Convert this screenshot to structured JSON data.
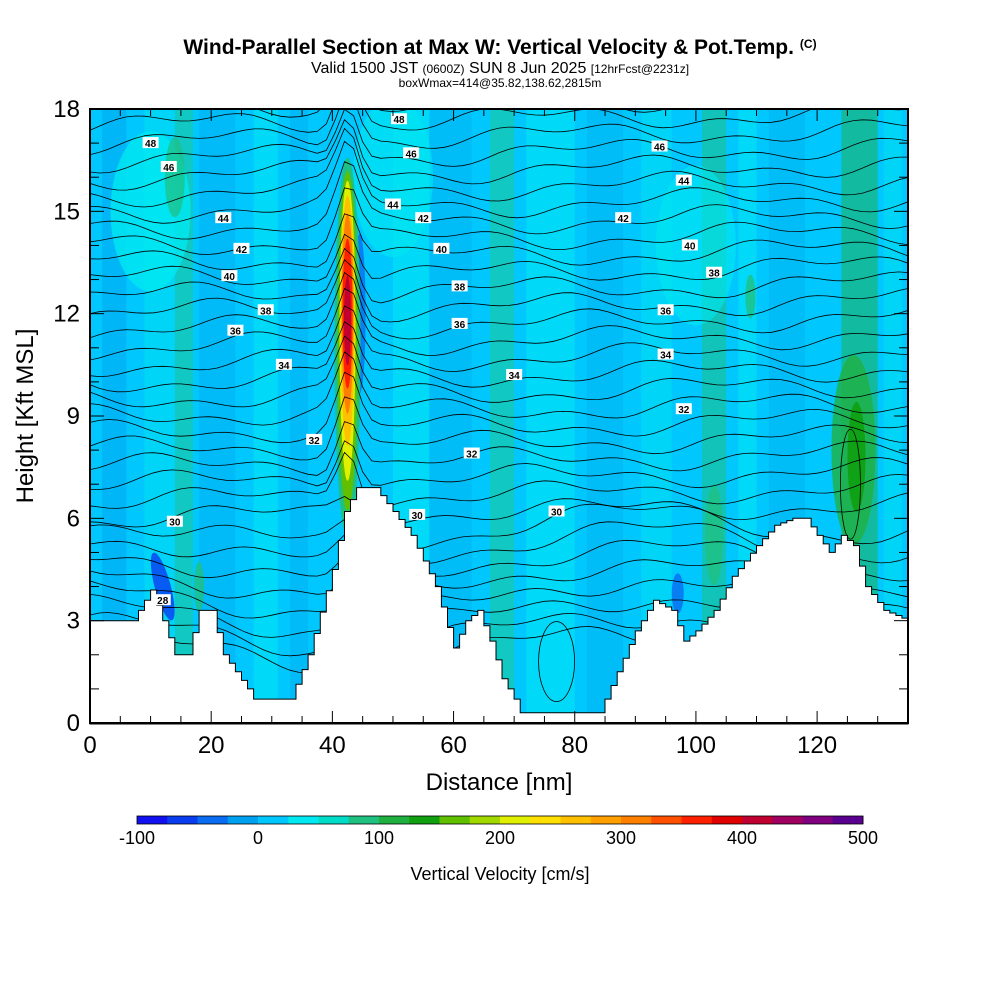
{
  "title": {
    "main": "Wind-Parallel Section at Max W: Vertical Velocity & Pot.Temp.",
    "copyright": "(C)",
    "valid_prefix": "Valid 1500 JST",
    "valid_z": "(0600Z)",
    "valid_date": "SUN 8 Jun 2025",
    "forecast": "[12hrFcst@2231z]",
    "boxwmax": "boxWmax=414@35.82,138.62,2815m"
  },
  "chart_data": {
    "type": "heatmap",
    "xlabel": "Distance [nm]",
    "ylabel": "Height [Kft MSL]",
    "xlim": [
      0,
      135
    ],
    "ylim": [
      0,
      18
    ],
    "x_ticks": [
      0,
      20,
      40,
      60,
      80,
      100,
      120
    ],
    "y_ticks": [
      0,
      3,
      6,
      9,
      12,
      15,
      18
    ],
    "colorbar": {
      "title": "Vertical Velocity [cm/s]",
      "range": [
        -100,
        500
      ],
      "ticks": [
        -100,
        0,
        100,
        200,
        300,
        400,
        500
      ],
      "colors": [
        "#1010f0",
        "#0a3cf0",
        "#0a6cf0",
        "#00a0f0",
        "#00c8ff",
        "#00e8f0",
        "#00dcc8",
        "#20c080",
        "#20b040",
        "#10a010",
        "#60c000",
        "#a0d800",
        "#e0f000",
        "#ffe000",
        "#ffc000",
        "#ffa000",
        "#ff8000",
        "#ff5000",
        "#ff2000",
        "#e00000",
        "#c00030",
        "#a00060",
        "#800080",
        "#5a0090"
      ]
    },
    "max_updraft": {
      "x": 42.5,
      "peak_height": 12,
      "max_value": 414
    },
    "background_value_color": "#00c8ff",
    "terrain": [
      [
        0,
        3
      ],
      [
        7,
        3
      ],
      [
        10,
        3.9
      ],
      [
        12,
        3
      ],
      [
        14,
        2
      ],
      [
        16,
        2
      ],
      [
        18,
        3.3
      ],
      [
        20,
        3.3
      ],
      [
        22,
        2
      ],
      [
        24,
        1.5
      ],
      [
        26,
        1
      ],
      [
        27,
        0.7
      ],
      [
        33,
        0.7
      ],
      [
        36,
        2
      ],
      [
        40,
        4.5
      ],
      [
        42,
        6.2
      ],
      [
        44,
        6.9
      ],
      [
        47,
        6.9
      ],
      [
        50,
        6.2
      ],
      [
        53,
        5.5
      ],
      [
        57,
        4
      ],
      [
        60,
        2.2
      ],
      [
        62,
        3
      ],
      [
        64,
        3.3
      ],
      [
        66,
        2.4
      ],
      [
        68,
        1.3
      ],
      [
        70,
        0.7
      ],
      [
        71,
        0.3
      ],
      [
        84,
        0.3
      ],
      [
        87,
        1.5
      ],
      [
        90,
        2.7
      ],
      [
        93,
        3.6
      ],
      [
        96,
        3.3
      ],
      [
        98,
        2.4
      ],
      [
        100,
        2.7
      ],
      [
        103,
        3.3
      ],
      [
        106,
        4.3
      ],
      [
        110,
        5.2
      ],
      [
        113,
        5.8
      ],
      [
        116,
        6
      ],
      [
        118,
        6
      ],
      [
        120,
        5.5
      ],
      [
        122,
        5
      ],
      [
        124,
        5.5
      ],
      [
        126,
        5.2
      ],
      [
        128,
        4
      ],
      [
        131,
        3.3
      ],
      [
        135,
        3
      ]
    ],
    "contour_labels": [
      {
        "text": "48",
        "x": 10,
        "y": 17
      },
      {
        "text": "48",
        "x": 51,
        "y": 17.7
      },
      {
        "text": "46",
        "x": 13,
        "y": 16.3
      },
      {
        "text": "46",
        "x": 53,
        "y": 16.7
      },
      {
        "text": "46",
        "x": 94,
        "y": 16.9
      },
      {
        "text": "44",
        "x": 22,
        "y": 14.8
      },
      {
        "text": "44",
        "x": 50,
        "y": 15.2
      },
      {
        "text": "44",
        "x": 98,
        "y": 15.9
      },
      {
        "text": "42",
        "x": 25,
        "y": 13.9
      },
      {
        "text": "42",
        "x": 55,
        "y": 14.8
      },
      {
        "text": "42",
        "x": 88,
        "y": 14.8
      },
      {
        "text": "40",
        "x": 23,
        "y": 13.1
      },
      {
        "text": "40",
        "x": 58,
        "y": 13.9
      },
      {
        "text": "40",
        "x": 99,
        "y": 14
      },
      {
        "text": "38",
        "x": 29,
        "y": 12.1
      },
      {
        "text": "38",
        "x": 61,
        "y": 12.8
      },
      {
        "text": "38",
        "x": 103,
        "y": 13.2
      },
      {
        "text": "36",
        "x": 24,
        "y": 11.5
      },
      {
        "text": "36",
        "x": 61,
        "y": 11.7
      },
      {
        "text": "36",
        "x": 95,
        "y": 12.1
      },
      {
        "text": "34",
        "x": 32,
        "y": 10.5
      },
      {
        "text": "34",
        "x": 70,
        "y": 10.2
      },
      {
        "text": "34",
        "x": 95,
        "y": 10.8
      },
      {
        "text": "32",
        "x": 37,
        "y": 8.3
      },
      {
        "text": "32",
        "x": 63,
        "y": 7.9
      },
      {
        "text": "32",
        "x": 98,
        "y": 9.2
      },
      {
        "text": "30",
        "x": 14,
        "y": 5.9
      },
      {
        "text": "30",
        "x": 54,
        "y": 6.1
      },
      {
        "text": "30",
        "x": 77,
        "y": 6.2
      },
      {
        "text": "28",
        "x": 12,
        "y": 3.6
      }
    ]
  }
}
